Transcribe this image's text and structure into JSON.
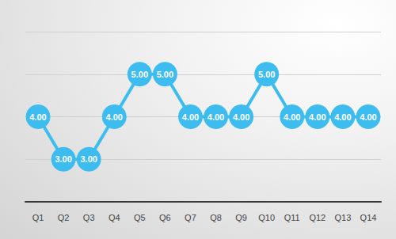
{
  "chart_data": {
    "type": "line",
    "categories": [
      "Q1",
      "Q2",
      "Q3",
      "Q4",
      "Q5",
      "Q6",
      "Q7",
      "Q8",
      "Q9",
      "Q10",
      "Q11",
      "Q12",
      "Q13",
      "Q14"
    ],
    "values": [
      4,
      3,
      3,
      4,
      5,
      5,
      4,
      4,
      4,
      5,
      4,
      4,
      4,
      4
    ],
    "value_labels": [
      "4.00",
      "3.00",
      "3.00",
      "4.00",
      "5.00",
      "5.00",
      "4.00",
      "4.00",
      "4.00",
      "5.00",
      "4.00",
      "4.00",
      "4.00",
      "4.00"
    ],
    "color": "#3dbcef",
    "marker": "circle",
    "ylim": [
      2,
      6
    ],
    "yticks": [
      2,
      3,
      4,
      5,
      6
    ],
    "grid": true,
    "data_labels": true,
    "tick_labels": "x"
  }
}
